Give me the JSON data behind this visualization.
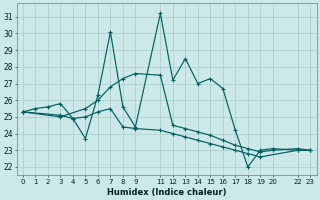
{
  "xlabel": "Humidex (Indice chaleur)",
  "background_color": "#cce8e8",
  "grid_color": "#aacccc",
  "line_color": "#006060",
  "ylim": [
    21.5,
    31.8
  ],
  "xlim": [
    -0.5,
    23.5
  ],
  "yticks": [
    22,
    23,
    24,
    25,
    26,
    27,
    28,
    29,
    30,
    31
  ],
  "xtick_positions": [
    0,
    1,
    2,
    3,
    4,
    5,
    6,
    7,
    8,
    9,
    11,
    12,
    13,
    14,
    15,
    16,
    17,
    18,
    19,
    20,
    22,
    23
  ],
  "xtick_labels": [
    "0",
    "1",
    "2",
    "3",
    "4",
    "5",
    "6",
    "7",
    "8",
    "9",
    "11",
    "12",
    "13",
    "14",
    "15",
    "16",
    "17",
    "18",
    "19",
    "20",
    "22",
    "23"
  ],
  "series": [
    {
      "x": [
        0,
        1,
        2,
        3,
        4,
        5,
        6,
        7,
        8,
        9,
        11,
        12,
        13,
        14,
        15,
        16,
        17,
        18,
        19,
        20,
        22,
        23
      ],
      "y": [
        25.3,
        25.5,
        25.6,
        25.8,
        24.9,
        23.7,
        26.3,
        30.1,
        25.6,
        24.4,
        31.2,
        27.2,
        28.5,
        27.0,
        27.3,
        26.7,
        24.2,
        22.0,
        23.0,
        23.1,
        23.0,
        23.0
      ]
    },
    {
      "x": [
        0,
        3,
        5,
        6,
        7,
        8,
        9,
        11,
        12,
        13,
        14,
        15,
        16,
        17,
        18,
        19,
        20,
        22,
        23
      ],
      "y": [
        25.3,
        25.0,
        25.5,
        26.0,
        26.8,
        27.3,
        27.6,
        27.5,
        24.5,
        24.3,
        24.1,
        23.9,
        23.6,
        23.3,
        23.1,
        22.9,
        23.0,
        23.1,
        23.0
      ]
    },
    {
      "x": [
        0,
        3,
        4,
        5,
        6,
        7,
        8,
        9,
        11,
        12,
        13,
        14,
        15,
        16,
        17,
        18,
        19,
        22,
        23
      ],
      "y": [
        25.3,
        25.1,
        24.9,
        25.0,
        25.3,
        25.5,
        24.4,
        24.3,
        24.2,
        24.0,
        23.8,
        23.6,
        23.4,
        23.2,
        23.0,
        22.8,
        22.6,
        23.0,
        23.0
      ]
    }
  ]
}
